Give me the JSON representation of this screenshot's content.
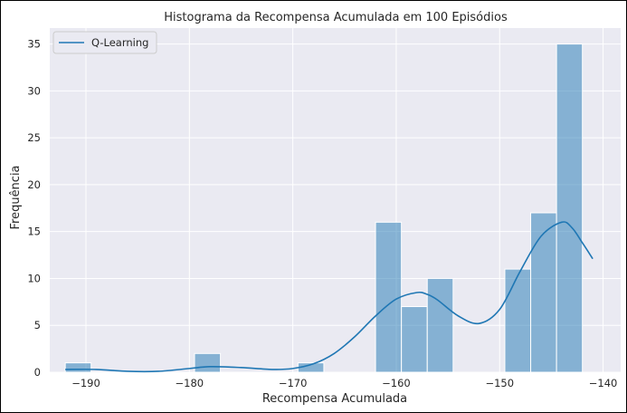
{
  "chart_data": {
    "type": "bar",
    "title": "Histograma da Recompensa Acumulada em 100 Episódios",
    "xlabel": "Recompensa Acumulada",
    "ylabel": "Frequência",
    "xlim": [
      -193.5,
      -138.3
    ],
    "ylim": [
      0,
      36.7
    ],
    "xticks": [
      -190,
      -180,
      -170,
      -160,
      -150,
      -140
    ],
    "xtick_labels": [
      "−190",
      "−180",
      "−170",
      "−160",
      "−150",
      "−140"
    ],
    "yticks": [
      0,
      5,
      10,
      15,
      20,
      25,
      30,
      35
    ],
    "ytick_labels": [
      "0",
      "5",
      "10",
      "15",
      "20",
      "25",
      "30",
      "35"
    ],
    "grid": true,
    "legend": {
      "position": "top-left",
      "entries": [
        "Q-Learning"
      ]
    },
    "bins": [
      {
        "x0": -192.0,
        "x1": -189.5,
        "count": 1
      },
      {
        "x0": -189.5,
        "x1": -187.0,
        "count": 0
      },
      {
        "x0": -187.0,
        "x1": -184.5,
        "count": 0
      },
      {
        "x0": -184.5,
        "x1": -182.0,
        "count": 0
      },
      {
        "x0": -182.0,
        "x1": -179.5,
        "count": 0
      },
      {
        "x0": -179.5,
        "x1": -177.0,
        "count": 2
      },
      {
        "x0": -177.0,
        "x1": -174.5,
        "count": 0
      },
      {
        "x0": -174.5,
        "x1": -172.0,
        "count": 0
      },
      {
        "x0": -172.0,
        "x1": -169.5,
        "count": 0
      },
      {
        "x0": -169.5,
        "x1": -167.0,
        "count": 1
      },
      {
        "x0": -167.0,
        "x1": -164.5,
        "count": 0
      },
      {
        "x0": -164.5,
        "x1": -162.0,
        "count": 0
      },
      {
        "x0": -162.0,
        "x1": -159.5,
        "count": 16
      },
      {
        "x0": -159.5,
        "x1": -157.0,
        "count": 7
      },
      {
        "x0": -157.0,
        "x1": -154.5,
        "count": 10
      },
      {
        "x0": -154.5,
        "x1": -152.0,
        "count": 0
      },
      {
        "x0": -152.0,
        "x1": -149.5,
        "count": 0
      },
      {
        "x0": -149.5,
        "x1": -147.0,
        "count": 11
      },
      {
        "x0": -147.0,
        "x1": -144.5,
        "count": 17
      },
      {
        "x0": -144.5,
        "x1": -142.0,
        "count": 35
      }
    ],
    "kde": {
      "name": "Q-Learning",
      "x": [
        -192,
        -189,
        -186,
        -183,
        -180,
        -178,
        -175,
        -172,
        -170,
        -168,
        -166,
        -164,
        -162,
        -160,
        -158,
        -157,
        -156,
        -154,
        -152,
        -150,
        -148,
        -146,
        -144,
        -143,
        -142,
        -141
      ],
      "y": [
        0.3,
        0.3,
        0.1,
        0.1,
        0.4,
        0.6,
        0.5,
        0.3,
        0.4,
        0.9,
        2.0,
        3.8,
        6.0,
        7.8,
        8.5,
        8.3,
        7.7,
        6.0,
        5.2,
        6.7,
        10.8,
        14.5,
        16.0,
        15.4,
        13.8,
        12.1
      ]
    },
    "colors": {
      "background": "#eaeaf2",
      "grid": "#ffffff",
      "bar_fill": "#1f77b4",
      "bar_fill_opacity": 0.5,
      "line": "#1f77b4"
    }
  }
}
